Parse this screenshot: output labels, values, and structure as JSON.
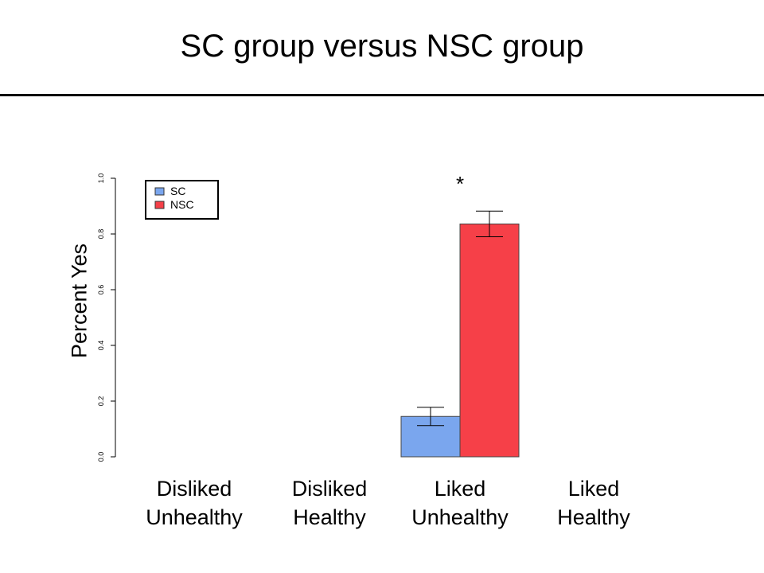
{
  "slide": {
    "title": "SC group versus NSC group"
  },
  "chart_data": {
    "type": "bar",
    "ylabel": "Percent Yes",
    "ylim": [
      0,
      1
    ],
    "yticks": [
      "0.0",
      "0.2",
      "0.4",
      "0.6",
      "0.8",
      "1.0"
    ],
    "categories": [
      {
        "line1": "Disliked",
        "line2": "Unhealthy"
      },
      {
        "line1": "Disliked",
        "line2": "Healthy"
      },
      {
        "line1": "Liked",
        "line2": "Unhealthy"
      },
      {
        "line1": "Liked",
        "line2": "Healthy"
      }
    ],
    "series": [
      {
        "name": "SC",
        "color": "#7aa6ee",
        "values": [
          null,
          null,
          0.145,
          null
        ],
        "error": [
          null,
          null,
          0.033,
          null
        ]
      },
      {
        "name": "NSC",
        "color": "#f64048",
        "values": [
          null,
          null,
          0.836,
          null
        ],
        "error": [
          null,
          null,
          0.046,
          null
        ]
      }
    ],
    "annotations": [
      {
        "text": "*",
        "category": 2
      }
    ],
    "legend": {
      "placement": "top-left",
      "items": [
        "SC",
        "NSC"
      ]
    },
    "grid": false
  }
}
